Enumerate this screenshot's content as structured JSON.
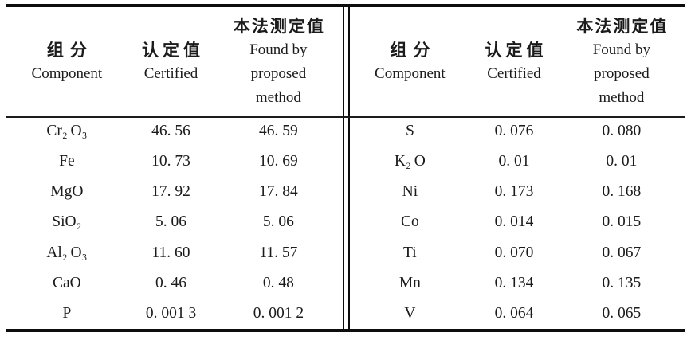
{
  "colors": {
    "text": "#1b1b1b",
    "rule": "#0d0d0d",
    "background": "#ffffff"
  },
  "table": {
    "left": {
      "header": {
        "component_zh": "组分",
        "component_en": "Component",
        "certified_zh": "认定值",
        "certified_en": "Certified",
        "found_zh": "本法测定值",
        "found_en_line1": "Found by",
        "found_en_line2": "proposed",
        "found_en_line3": "method"
      },
      "rows": [
        {
          "component": "Cr₂ O₃",
          "certified": "46. 56",
          "found": "46. 59"
        },
        {
          "component": "Fe",
          "certified": "10. 73",
          "found": "10. 69"
        },
        {
          "component": "MgO",
          "certified": "17. 92",
          "found": "17. 84"
        },
        {
          "component": "SiO₂",
          "certified": "5. 06",
          "found": "5. 06"
        },
        {
          "component": "Al₂ O₃",
          "certified": "11. 60",
          "found": "11. 57"
        },
        {
          "component": "CaO",
          "certified": "0. 46",
          "found": "0. 48"
        },
        {
          "component": "P",
          "certified": "0. 001 3",
          "found": "0. 001 2"
        }
      ]
    },
    "right": {
      "header": {
        "component_zh": "组分",
        "component_en": "Component",
        "certified_zh": "认定值",
        "certified_en": "Certified",
        "found_zh": "本法测定值",
        "found_en_line1": "Found by",
        "found_en_line2": "proposed",
        "found_en_line3": "method"
      },
      "rows": [
        {
          "component": "S",
          "certified": "0. 076",
          "found": "0. 080"
        },
        {
          "component": "K₂ O",
          "certified": "0. 01",
          "found": "0. 01"
        },
        {
          "component": "Ni",
          "certified": "0. 173",
          "found": "0. 168"
        },
        {
          "component": "Co",
          "certified": "0. 014",
          "found": "0. 015"
        },
        {
          "component": "Ti",
          "certified": "0. 070",
          "found": "0. 067"
        },
        {
          "component": "Mn",
          "certified": "0. 134",
          "found": "0. 135"
        },
        {
          "component": "V",
          "certified": "0. 064",
          "found": "0. 065"
        }
      ]
    }
  }
}
